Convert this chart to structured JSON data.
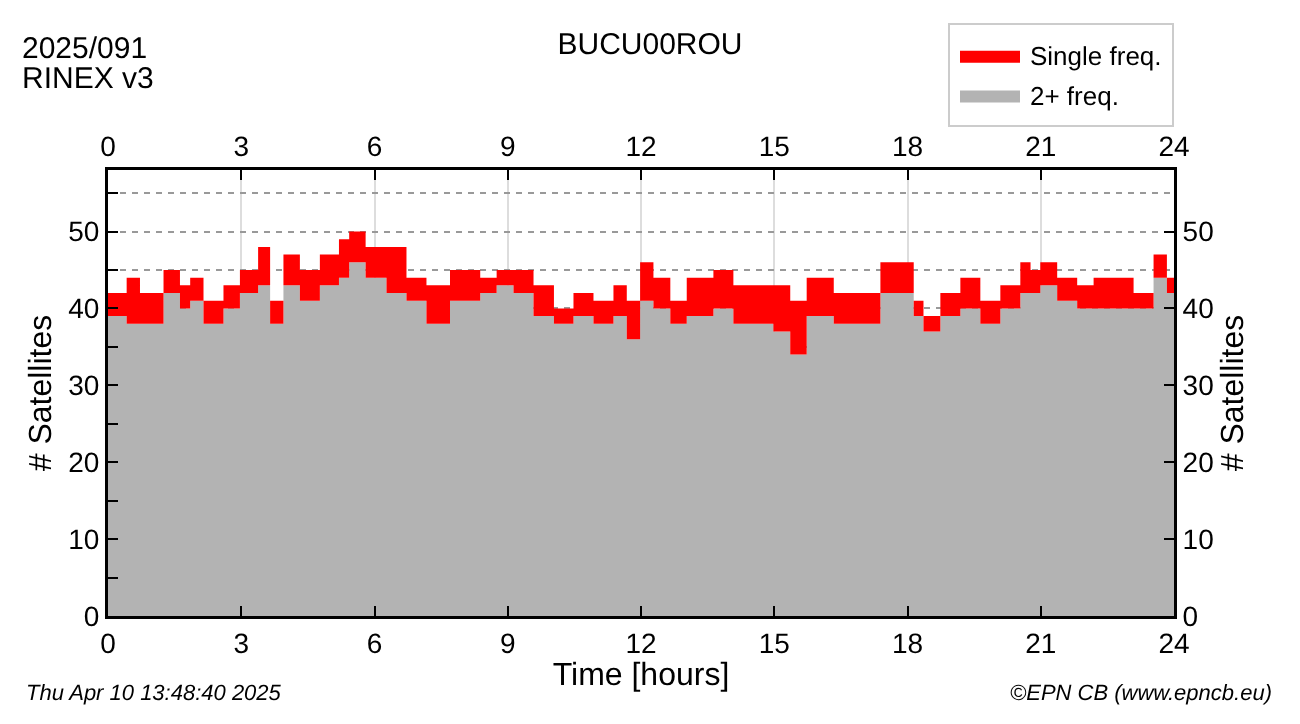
{
  "chart_data": {
    "type": "area",
    "title": "BUCU00ROU",
    "xlabel": "Time [hours]",
    "ylabel": "# Satellites",
    "y2label": "# Satellites",
    "annotations": [
      "2025/091",
      "RINEX v3",
      "Thu Apr 10 13:48:40 2025",
      "©EPN CB (www.epncb.eu)"
    ],
    "x": [
      0,
      0.42,
      0.72,
      1.25,
      1.62,
      1.85,
      2.15,
      2.6,
      2.97,
      3.38,
      3.65,
      3.95,
      4.32,
      4.77,
      5.2,
      5.43,
      5.8,
      6.27,
      6.72,
      7.17,
      7.7,
      8.38,
      8.75,
      9.13,
      9.58,
      10.04,
      10.48,
      10.93,
      11.38,
      11.68,
      11.98,
      12.28,
      12.66,
      13.03,
      13.4,
      13.63,
      14.08,
      14.53,
      14.98,
      15.36,
      15.73,
      16.34,
      16.94,
      17.39,
      17.76,
      18.14,
      18.36,
      18.74,
      19.19,
      19.64,
      20.09,
      20.54,
      20.77,
      20.99,
      21.37,
      21.82,
      22.19,
      22.64,
      23.09,
      23.32,
      23.54,
      23.84,
      24
    ],
    "stacked": true,
    "series": [
      {
        "name": "2+ freq.",
        "color": "#b3b3b3",
        "values": [
          39,
          38,
          38,
          42,
          40,
          41,
          38,
          40,
          42,
          43,
          38,
          43,
          41,
          43,
          44,
          46,
          44,
          42,
          41,
          38,
          41,
          42,
          43,
          42,
          39,
          38,
          39,
          38,
          39,
          36,
          41,
          40,
          38,
          39,
          39,
          40,
          38,
          38,
          37,
          34,
          39,
          38,
          38,
          42,
          42,
          39,
          37,
          39,
          40,
          38,
          40,
          42,
          42,
          43,
          41,
          40,
          40,
          40,
          40,
          40,
          44,
          42,
          42
        ]
      },
      {
        "name": "Single freq.",
        "color": "#ff0000",
        "values": [
          3,
          6,
          4,
          3,
          3,
          3,
          3,
          3,
          3,
          5,
          3,
          4,
          4,
          4,
          5,
          4,
          4,
          6,
          3,
          5,
          4,
          2,
          2,
          3,
          4,
          2,
          3,
          3,
          4,
          5,
          5,
          4,
          3,
          5,
          5,
          5,
          5,
          5,
          6,
          7,
          5,
          4,
          4,
          4,
          4,
          2,
          2,
          3,
          4,
          3,
          3,
          4,
          3,
          3,
          3,
          3,
          4,
          4,
          2,
          2,
          3,
          2,
          2
        ]
      }
    ],
    "xlim": [
      0,
      24
    ],
    "xticks": [
      0,
      3,
      6,
      9,
      12,
      15,
      18,
      21,
      24
    ],
    "x2lim": [
      0,
      24
    ],
    "x2ticks": [
      0,
      3,
      6,
      9,
      12,
      15,
      18,
      21,
      24
    ],
    "ylim": [
      0,
      58
    ],
    "yticks": [
      0,
      {
        "value": 5,
        "label": null
      },
      10,
      {
        "value": 15,
        "label": null
      },
      20,
      {
        "value": 25,
        "label": null
      },
      30,
      {
        "value": 35,
        "label": null
      },
      40,
      {
        "value": 45,
        "label": null
      },
      50,
      {
        "value": 55,
        "label": null
      }
    ],
    "y2lim": [
      0,
      58
    ],
    "y2ticks": [
      0,
      10,
      20,
      30,
      40,
      50
    ],
    "grid": true,
    "legend": "top right",
    "marker": "none"
  }
}
